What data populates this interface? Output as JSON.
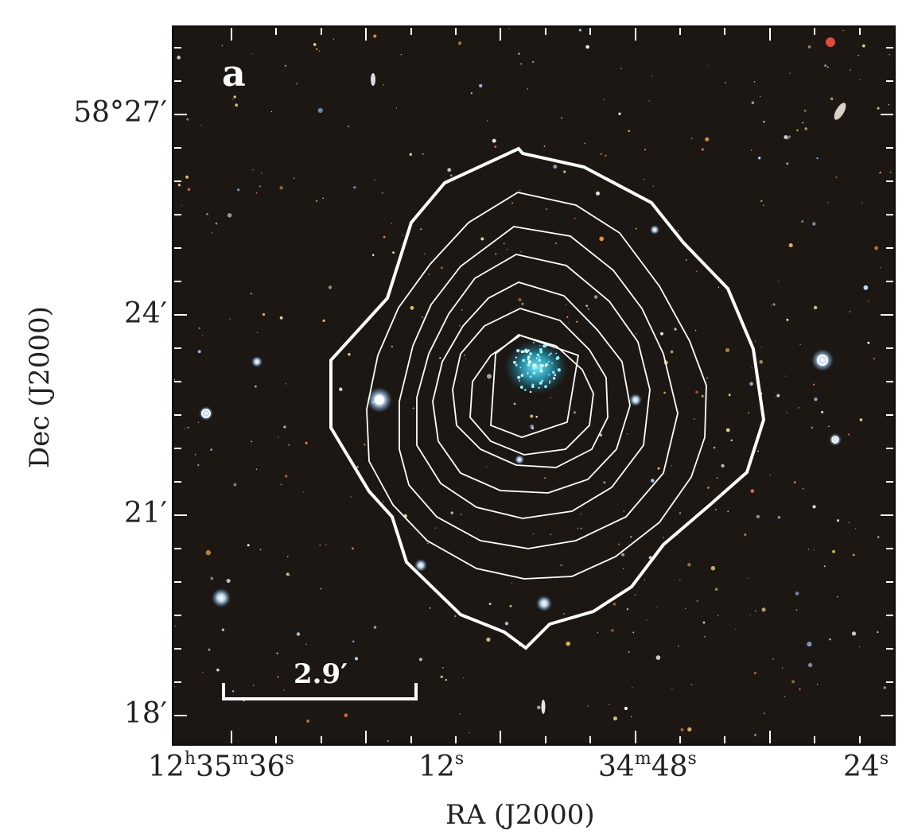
{
  "panel": {
    "label": "a",
    "scalebar_label": "2.9′"
  },
  "axes": {
    "xlabel": "RA (J2000)",
    "ylabel": "Dec (J2000)",
    "yticks": [
      "58°27′",
      "24′",
      "21′",
      "18′"
    ],
    "xticks": [
      {
        "main": "12",
        "sup1": "h",
        "mid": "35",
        "sup2": "m",
        "end": "36",
        "sup3": "s"
      },
      {
        "main": "12",
        "sup1": "s"
      },
      {
        "main": "34",
        "sup1": "m",
        "mid": "48",
        "sup2": "s"
      },
      {
        "main": "24",
        "sup1": "s"
      }
    ]
  },
  "colors": {
    "sky": "#1a1612",
    "contour": "#ffffff",
    "galaxy": "#3fd0e8"
  }
}
